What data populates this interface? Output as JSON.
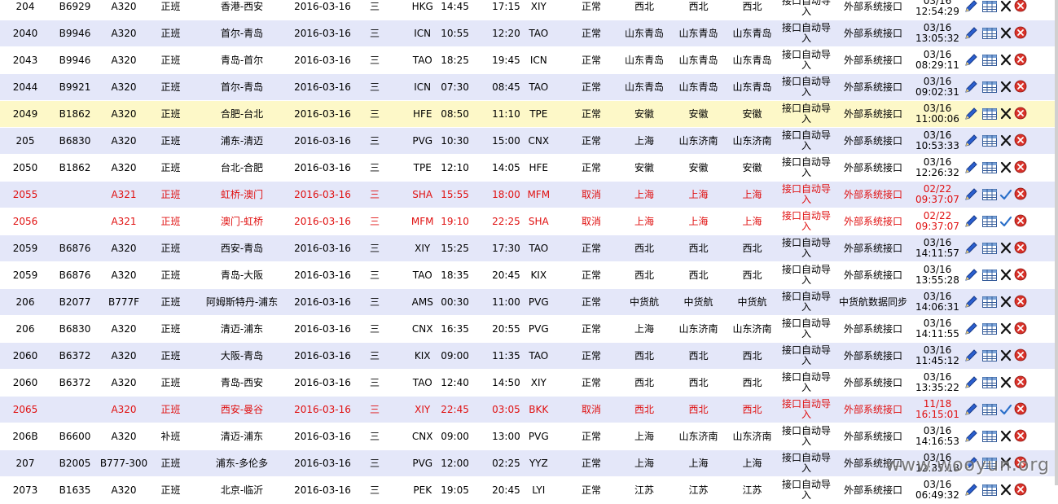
{
  "columns": [
    "row_id",
    "tail",
    "aircraft",
    "flight_type",
    "route",
    "date",
    "weekday",
    "dep_code",
    "dep_time",
    "arr_time",
    "arr_code",
    "status",
    "dept1",
    "dept2",
    "dept3",
    "import_mode",
    "source",
    "updated"
  ],
  "icons": {
    "edit": "pencil-icon",
    "table": "table-grid-icon",
    "cancel": "x-icon",
    "confirm": "checkmark-icon",
    "delete": "delete-circle-icon"
  },
  "colors": {
    "row_alt": "#e4e7f9",
    "row_highlight": "#fdf8c8",
    "cancel_text": "#e01010",
    "delete_red": "#d9322a",
    "edit_blue": "#2b5fcf"
  },
  "rows": [
    {
      "id": "204",
      "tail": "B6929",
      "ac": "A320",
      "type": "正班",
      "route": "香港-西安",
      "date": "2016-03-16",
      "wd": "三",
      "dep": "HKG",
      "dt": "14:45",
      "at": "17:15",
      "arr": "XIY",
      "status": "正常",
      "d1": "西北",
      "d2": "西北",
      "d3": "西北",
      "mode": "接口自动导入",
      "src": "外部系统接口",
      "upd_d": "03/16",
      "upd_t": "12:54:29",
      "style": "odd",
      "op3": "cancel"
    },
    {
      "id": "2040",
      "tail": "B9946",
      "ac": "A320",
      "type": "正班",
      "route": "首尔-青岛",
      "date": "2016-03-16",
      "wd": "三",
      "dep": "ICN",
      "dt": "10:55",
      "at": "12:20",
      "arr": "TAO",
      "status": "正常",
      "d1": "山东青岛",
      "d2": "山东青岛",
      "d3": "山东青岛",
      "mode": "接口自动导入",
      "src": "外部系统接口",
      "upd_d": "03/16",
      "upd_t": "13:05:32",
      "style": "even",
      "op3": "cancel"
    },
    {
      "id": "2043",
      "tail": "B9946",
      "ac": "A320",
      "type": "正班",
      "route": "青岛-首尔",
      "date": "2016-03-16",
      "wd": "三",
      "dep": "TAO",
      "dt": "18:25",
      "at": "19:45",
      "arr": "ICN",
      "status": "正常",
      "d1": "山东青岛",
      "d2": "山东青岛",
      "d3": "山东青岛",
      "mode": "接口自动导入",
      "src": "外部系统接口",
      "upd_d": "03/16",
      "upd_t": "08:29:11",
      "style": "odd",
      "op3": "cancel"
    },
    {
      "id": "2044",
      "tail": "B9921",
      "ac": "A320",
      "type": "正班",
      "route": "首尔-青岛",
      "date": "2016-03-16",
      "wd": "三",
      "dep": "ICN",
      "dt": "07:30",
      "at": "08:45",
      "arr": "TAO",
      "status": "正常",
      "d1": "山东青岛",
      "d2": "山东青岛",
      "d3": "山东青岛",
      "mode": "接口自动导入",
      "src": "外部系统接口",
      "upd_d": "03/16",
      "upd_t": "09:02:31",
      "style": "even",
      "op3": "cancel"
    },
    {
      "id": "2049",
      "tail": "B1862",
      "ac": "A320",
      "type": "正班",
      "route": "合肥-台北",
      "date": "2016-03-16",
      "wd": "三",
      "dep": "HFE",
      "dt": "08:50",
      "at": "11:10",
      "arr": "TPE",
      "status": "正常",
      "d1": "安徽",
      "d2": "安徽",
      "d3": "安徽",
      "mode": "接口自动导入",
      "src": "外部系统接口",
      "upd_d": "03/16",
      "upd_t": "11:00:06",
      "style": "hl",
      "op3": "cancel"
    },
    {
      "id": "205",
      "tail": "B6830",
      "ac": "A320",
      "type": "正班",
      "route": "浦东-清迈",
      "date": "2016-03-16",
      "wd": "三",
      "dep": "PVG",
      "dt": "10:30",
      "at": "15:00",
      "arr": "CNX",
      "status": "正常",
      "d1": "上海",
      "d2": "山东济南",
      "d3": "山东济南",
      "mode": "接口自动导入",
      "src": "外部系统接口",
      "upd_d": "03/16",
      "upd_t": "10:53:33",
      "style": "even",
      "op3": "cancel"
    },
    {
      "id": "2050",
      "tail": "B1862",
      "ac": "A320",
      "type": "正班",
      "route": "台北-合肥",
      "date": "2016-03-16",
      "wd": "三",
      "dep": "TPE",
      "dt": "12:10",
      "at": "14:05",
      "arr": "HFE",
      "status": "正常",
      "d1": "安徽",
      "d2": "安徽",
      "d3": "安徽",
      "mode": "接口自动导入",
      "src": "外部系统接口",
      "upd_d": "03/16",
      "upd_t": "12:26:32",
      "style": "odd",
      "op3": "cancel"
    },
    {
      "id": "2055",
      "tail": "",
      "ac": "A321",
      "type": "正班",
      "route": "虹桥-澳门",
      "date": "2016-03-16",
      "wd": "三",
      "dep": "SHA",
      "dt": "15:55",
      "at": "18:00",
      "arr": "MFM",
      "status": "取消",
      "d1": "上海",
      "d2": "上海",
      "d3": "上海",
      "mode": "接口自动导入",
      "src": "外部系统接口",
      "upd_d": "02/22",
      "upd_t": "09:37:07",
      "style": "even cancel",
      "op3": "confirm"
    },
    {
      "id": "2056",
      "tail": "",
      "ac": "A321",
      "type": "正班",
      "route": "澳门-虹桥",
      "date": "2016-03-16",
      "wd": "三",
      "dep": "MFM",
      "dt": "19:10",
      "at": "22:25",
      "arr": "SHA",
      "status": "取消",
      "d1": "上海",
      "d2": "上海",
      "d3": "上海",
      "mode": "接口自动导入",
      "src": "外部系统接口",
      "upd_d": "02/22",
      "upd_t": "09:37:07",
      "style": "odd cancel",
      "op3": "confirm"
    },
    {
      "id": "2059",
      "tail": "B6876",
      "ac": "A320",
      "type": "正班",
      "route": "西安-青岛",
      "date": "2016-03-16",
      "wd": "三",
      "dep": "XIY",
      "dt": "15:25",
      "at": "17:30",
      "arr": "TAO",
      "status": "正常",
      "d1": "西北",
      "d2": "西北",
      "d3": "西北",
      "mode": "接口自动导入",
      "src": "外部系统接口",
      "upd_d": "03/16",
      "upd_t": "14:11:57",
      "style": "even",
      "op3": "cancel"
    },
    {
      "id": "2059",
      "tail": "B6876",
      "ac": "A320",
      "type": "正班",
      "route": "青岛-大阪",
      "date": "2016-03-16",
      "wd": "三",
      "dep": "TAO",
      "dt": "18:35",
      "at": "20:45",
      "arr": "KIX",
      "status": "正常",
      "d1": "西北",
      "d2": "西北",
      "d3": "西北",
      "mode": "接口自动导入",
      "src": "外部系统接口",
      "upd_d": "03/16",
      "upd_t": "13:55:28",
      "style": "odd",
      "op3": "cancel"
    },
    {
      "id": "206",
      "tail": "B2077",
      "ac": "B777F",
      "type": "正班",
      "route": "阿姆斯特丹-浦东",
      "date": "2016-03-16",
      "wd": "三",
      "dep": "AMS",
      "dt": "00:30",
      "at": "11:00",
      "arr": "PVG",
      "status": "正常",
      "d1": "中货航",
      "d2": "中货航",
      "d3": "中货航",
      "mode": "接口自动导入",
      "src": "中货航数据同步",
      "upd_d": "03/16",
      "upd_t": "14:06:31",
      "style": "even",
      "op3": "cancel"
    },
    {
      "id": "206",
      "tail": "B6830",
      "ac": "A320",
      "type": "正班",
      "route": "清迈-浦东",
      "date": "2016-03-16",
      "wd": "三",
      "dep": "CNX",
      "dt": "16:35",
      "at": "20:55",
      "arr": "PVG",
      "status": "正常",
      "d1": "上海",
      "d2": "山东济南",
      "d3": "山东济南",
      "mode": "接口自动导入",
      "src": "外部系统接口",
      "upd_d": "03/16",
      "upd_t": "14:11:55",
      "style": "odd",
      "op3": "cancel"
    },
    {
      "id": "2060",
      "tail": "B6372",
      "ac": "A320",
      "type": "正班",
      "route": "大阪-青岛",
      "date": "2016-03-16",
      "wd": "三",
      "dep": "KIX",
      "dt": "09:00",
      "at": "11:35",
      "arr": "TAO",
      "status": "正常",
      "d1": "西北",
      "d2": "西北",
      "d3": "西北",
      "mode": "接口自动导入",
      "src": "外部系统接口",
      "upd_d": "03/16",
      "upd_t": "11:45:12",
      "style": "even",
      "op3": "cancel"
    },
    {
      "id": "2060",
      "tail": "B6372",
      "ac": "A320",
      "type": "正班",
      "route": "青岛-西安",
      "date": "2016-03-16",
      "wd": "三",
      "dep": "TAO",
      "dt": "12:40",
      "at": "14:50",
      "arr": "XIY",
      "status": "正常",
      "d1": "西北",
      "d2": "西北",
      "d3": "西北",
      "mode": "接口自动导入",
      "src": "外部系统接口",
      "upd_d": "03/16",
      "upd_t": "13:35:22",
      "style": "odd",
      "op3": "cancel"
    },
    {
      "id": "2065",
      "tail": "",
      "ac": "A320",
      "type": "正班",
      "route": "西安-曼谷",
      "date": "2016-03-16",
      "wd": "三",
      "dep": "XIY",
      "dt": "22:45",
      "at": "03:05",
      "arr": "BKK",
      "status": "取消",
      "d1": "西北",
      "d2": "西北",
      "d3": "西北",
      "mode": "接口自动导入",
      "src": "外部系统接口",
      "upd_d": "11/18",
      "upd_t": "16:15:01",
      "style": "even cancel",
      "op3": "confirm"
    },
    {
      "id": "206B",
      "tail": "B6600",
      "ac": "A320",
      "type": "补班",
      "route": "清迈-浦东",
      "date": "2016-03-16",
      "wd": "三",
      "dep": "CNX",
      "dt": "09:00",
      "at": "13:00",
      "arr": "PVG",
      "status": "正常",
      "d1": "上海",
      "d2": "山东济南",
      "d3": "山东济南",
      "mode": "接口自动导入",
      "src": "外部系统接口",
      "upd_d": "03/16",
      "upd_t": "14:16:53",
      "style": "odd",
      "op3": "cancel"
    },
    {
      "id": "207",
      "tail": "B2005",
      "ac": "B777-300",
      "type": "正班",
      "route": "浦东-多伦多",
      "date": "2016-03-16",
      "wd": "三",
      "dep": "PVG",
      "dt": "12:00",
      "at": "02:25",
      "arr": "YYZ",
      "status": "正常",
      "d1": "上海",
      "d2": "上海",
      "d3": "上海",
      "mode": "接口自动导入",
      "src": "外部系统接口",
      "upd_d": "03/16",
      "upd_t": "12:35:18",
      "style": "even",
      "op3": "cancel"
    },
    {
      "id": "2073",
      "tail": "B1635",
      "ac": "A320",
      "type": "正班",
      "route": "北京-临沂",
      "date": "2016-03-16",
      "wd": "三",
      "dep": "PEK",
      "dt": "19:05",
      "at": "20:45",
      "arr": "LYI",
      "status": "正常",
      "d1": "江苏",
      "d2": "江苏",
      "d3": "江苏",
      "mode": "接口自动导入",
      "src": "外部系统接口",
      "upd_d": "03/16",
      "upd_t": "06:49:32",
      "style": "odd",
      "op3": "cancel"
    }
  ],
  "watermark": "www.wooyun.org"
}
